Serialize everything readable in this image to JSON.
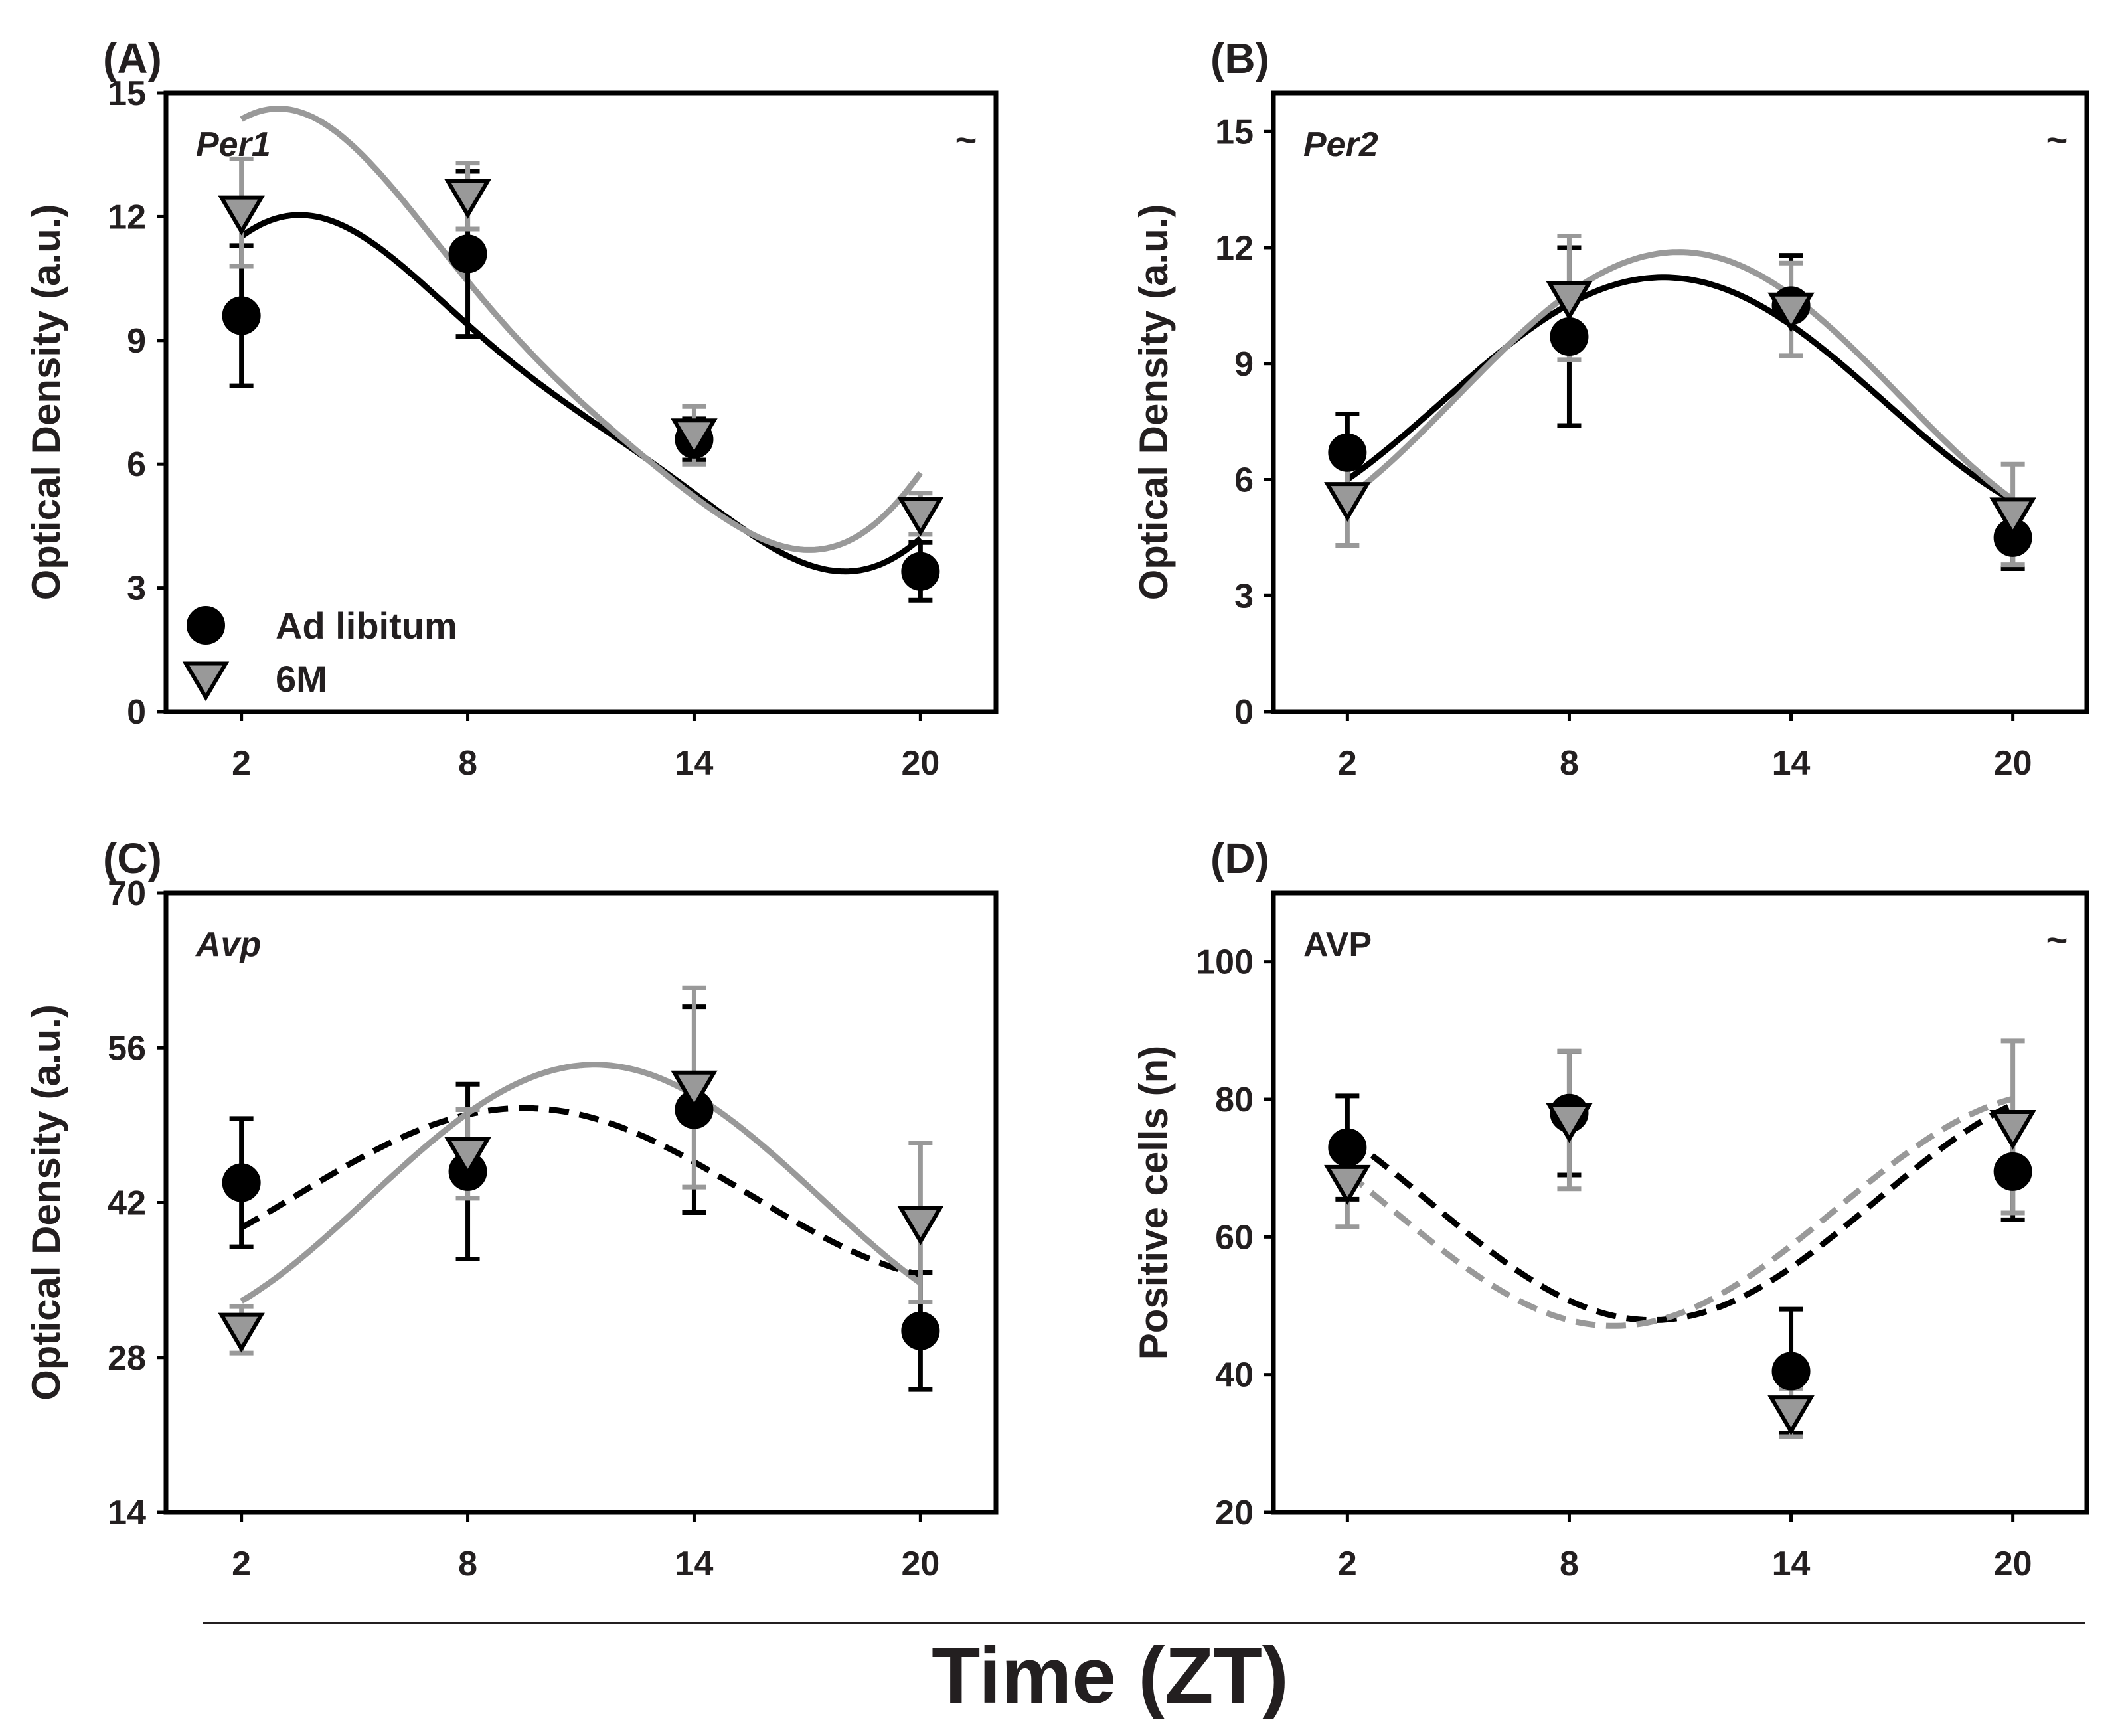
{
  "figure": {
    "overall_xlabel": "Time (ZT)"
  },
  "colors": {
    "ad_libitum": "#000000",
    "six_month": "#999999",
    "frame": "#000000"
  },
  "legend": {
    "items": [
      {
        "label": "Ad libitum",
        "marker": "circle",
        "color": "#000000"
      },
      {
        "label": "6M",
        "marker": "triangle-down",
        "color": "#999999"
      }
    ]
  },
  "chart_data": [
    {
      "id": "A",
      "panel_label": "(A)",
      "gene": "Per1",
      "gene_italic": true,
      "significance": "~",
      "type": "scatter",
      "xlabel": "Time (ZT)",
      "ylabel": "Optical Density (a.u.)",
      "x": [
        2,
        8,
        14,
        20
      ],
      "xlim": [
        0,
        22
      ],
      "ylim": [
        0,
        15
      ],
      "yticks": [
        0,
        3,
        6,
        9,
        12,
        15
      ],
      "series": [
        {
          "name": "Ad libitum",
          "marker": "circle",
          "color": "#000000",
          "values": [
            9.6,
            11.1,
            6.6,
            3.4
          ],
          "err": [
            1.7,
            2.0,
            0.5,
            0.7
          ],
          "fit": {
            "dash": false,
            "mean": 7.6,
            "c": 1.4,
            "s": 3.8,
            "c2": 0.4,
            "s2": 0.7
          }
        },
        {
          "name": "6M",
          "marker": "triangle-down",
          "color": "#999999",
          "values": [
            12.1,
            12.5,
            6.7,
            4.8
          ],
          "err": [
            1.3,
            0.8,
            0.7,
            0.5
          ],
          "fit": {
            "dash": false,
            "mean": 8.95,
            "c": 2.8,
            "s": 4.3,
            "c2": 0.55,
            "s2": 0.65
          }
        }
      ]
    },
    {
      "id": "B",
      "panel_label": "(B)",
      "gene": "Per2",
      "gene_italic": true,
      "significance": "~",
      "type": "scatter",
      "xlabel": "Time (ZT)",
      "ylabel": "Optical Density (a.u.)",
      "x": [
        2,
        8,
        14,
        20
      ],
      "xlim": [
        0,
        22
      ],
      "ylim": [
        0,
        16
      ],
      "yticks": [
        0,
        3,
        6,
        9,
        12,
        15
      ],
      "series": [
        {
          "name": "Ad libitum",
          "marker": "circle",
          "color": "#000000",
          "values": [
            6.7,
            9.7,
            10.5,
            4.5
          ],
          "err": [
            1.0,
            2.3,
            1.3,
            0.8
          ],
          "fit": {
            "dash": false,
            "mean": 8.0,
            "c": -3.0,
            "s": 1.2,
            "c2": 0,
            "s2": 0
          }
        },
        {
          "name": "6M",
          "marker": "triangle-down",
          "color": "#999999",
          "values": [
            5.5,
            10.7,
            10.4,
            5.1
          ],
          "err": [
            1.2,
            1.6,
            1.2,
            1.3
          ],
          "fit": {
            "dash": false,
            "mean": 8.15,
            "c": -3.6,
            "s": 1.0,
            "c2": 0,
            "s2": 0
          }
        }
      ]
    },
    {
      "id": "C",
      "panel_label": "(C)",
      "gene": "Avp",
      "gene_italic": true,
      "significance": "",
      "type": "scatter",
      "xlabel": "Time (ZT)",
      "ylabel": "Optical Density (a.u.)",
      "x": [
        2,
        8,
        14,
        20
      ],
      "xlim": [
        0,
        22
      ],
      "ylim": [
        14,
        70
      ],
      "yticks": [
        14,
        28,
        42,
        56,
        70
      ],
      "series": [
        {
          "name": "Ad libitum",
          "marker": "circle",
          "color": "#000000",
          "values": [
            43.8,
            44.8,
            50.4,
            30.4
          ],
          "err": [
            5.8,
            7.9,
            9.3,
            5.3
          ],
          "fit": {
            "dash": true,
            "mean": 42.7,
            "c": -6.2,
            "s": 4.8,
            "c2": 0,
            "s2": 0
          }
        },
        {
          "name": "6M",
          "marker": "triangle-down",
          "color": "#999999",
          "values": [
            30.5,
            46.4,
            52.4,
            40.2
          ],
          "err": [
            2.1,
            4.0,
            9.0,
            7.2
          ],
          "fit": {
            "dash": false,
            "mean": 42.4,
            "c": -11.9,
            "s": 2.0,
            "c2": 0,
            "s2": 0
          }
        }
      ]
    },
    {
      "id": "D",
      "panel_label": "(D)",
      "gene": "AVP",
      "gene_italic": false,
      "significance": "~",
      "type": "scatter",
      "xlabel": "Time (ZT)",
      "ylabel": "Positive cells (n)",
      "x": [
        2,
        8,
        14,
        20
      ],
      "xlim": [
        0,
        22
      ],
      "ylim": [
        20,
        110
      ],
      "yticks": [
        20,
        40,
        60,
        80,
        100
      ],
      "series": [
        {
          "name": "Ad libitum",
          "marker": "circle",
          "color": "#000000",
          "values": [
            73,
            78,
            40.5,
            69.5
          ],
          "err": [
            7.5,
            9,
            9,
            7
          ],
          "fit": {
            "dash": true,
            "mean": 65.0,
            "c": 15.3,
            "s": -7.6,
            "c2": 0,
            "s2": 0
          }
        },
        {
          "name": "6M",
          "marker": "triangle-down",
          "color": "#999999",
          "values": [
            68,
            77,
            34.5,
            76
          ],
          "err": [
            6.5,
            10,
            3.5,
            12.5
          ],
          "fit": {
            "dash": true,
            "mean": 64.0,
            "c": 12.6,
            "s": -11.3,
            "c2": 0,
            "s2": 0
          }
        }
      ]
    }
  ]
}
